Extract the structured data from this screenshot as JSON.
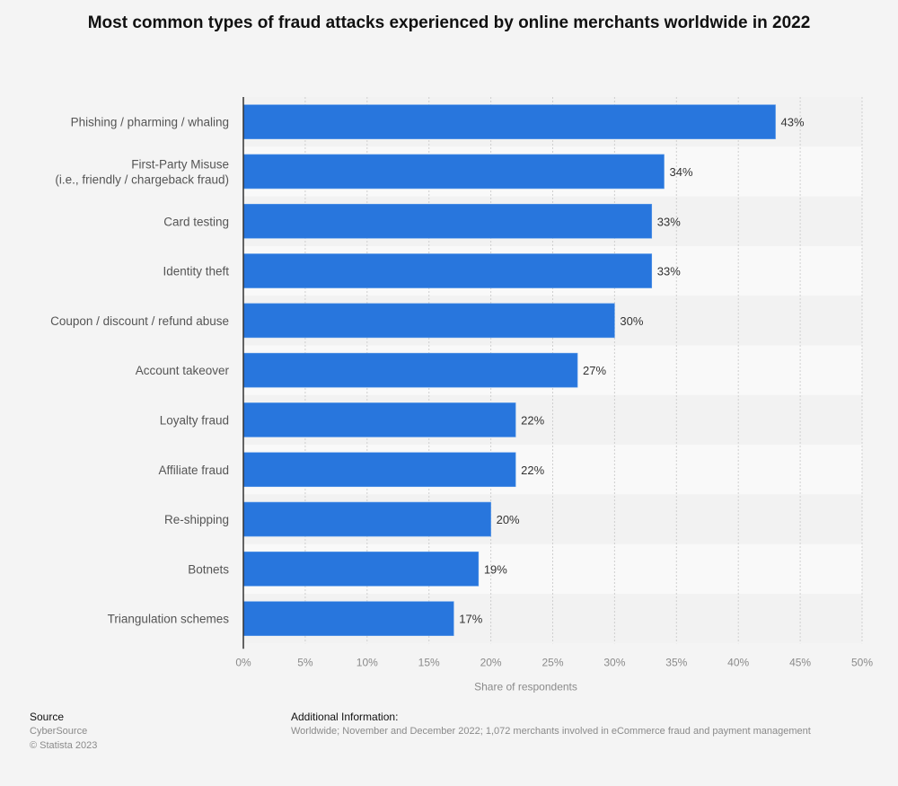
{
  "chart_data": {
    "type": "bar",
    "orientation": "horizontal",
    "title": "Most common types of fraud attacks experienced by online merchants worldwide in 2022",
    "categories": [
      [
        "Phishing / pharming / whaling"
      ],
      [
        "First-Party Misuse",
        "(i.e., friendly / chargeback fraud)"
      ],
      [
        "Card testing"
      ],
      [
        "Identity theft"
      ],
      [
        "Coupon / discount / refund abuse"
      ],
      [
        "Account takeover"
      ],
      [
        "Loyalty fraud"
      ],
      [
        "Affiliate fraud"
      ],
      [
        "Re-shipping"
      ],
      [
        "Botnets"
      ],
      [
        "Triangulation schemes"
      ]
    ],
    "values": [
      43,
      34,
      33,
      33,
      30,
      27,
      22,
      22,
      20,
      19,
      17
    ],
    "value_labels": [
      "43%",
      "34%",
      "33%",
      "33%",
      "30%",
      "27%",
      "22%",
      "22%",
      "20%",
      "19%",
      "17%"
    ],
    "xlabel": "Share of respondents",
    "ylabel": "",
    "xlim": [
      0,
      50
    ],
    "xticks": [
      0,
      5,
      10,
      15,
      20,
      25,
      30,
      35,
      40,
      45,
      50
    ],
    "xtick_labels": [
      "0%",
      "5%",
      "10%",
      "15%",
      "20%",
      "25%",
      "30%",
      "35%",
      "40%",
      "45%",
      "50%"
    ],
    "grid": true,
    "bar_color": "#2876dd"
  },
  "footer": {
    "source_heading": "Source",
    "source_name": "CyberSource",
    "copyright": "© Statista 2023",
    "additional_heading": "Additional Information:",
    "additional_text": "Worldwide; November and December 2022; 1,072 merchants involved in eCommerce fraud and payment management"
  }
}
